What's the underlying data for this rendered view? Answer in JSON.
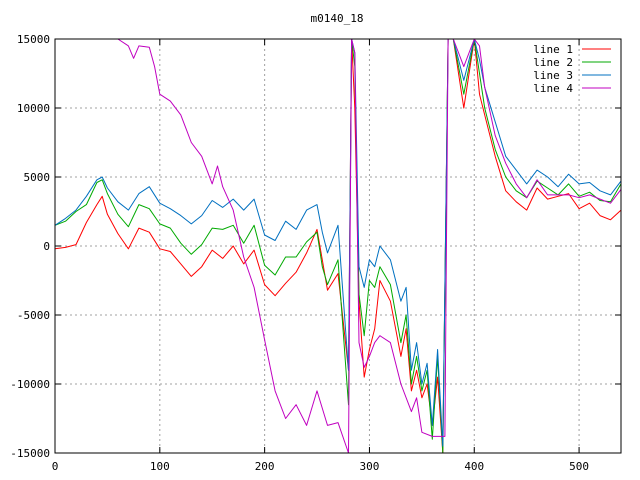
{
  "chart_data": {
    "type": "line",
    "title": "m0140_18",
    "xlabel": "",
    "ylabel": "",
    "xlim": [
      0,
      540
    ],
    "ylim": [
      -15000,
      15000
    ],
    "xticks": [
      0,
      100,
      200,
      300,
      400,
      500
    ],
    "yticks": [
      -15000,
      -10000,
      -5000,
      0,
      5000,
      10000,
      15000
    ],
    "grid": true,
    "legend_position": "top-right",
    "series": [
      {
        "name": "line 1",
        "color": "#ff0000",
        "points": [
          [
            0,
            -200
          ],
          [
            10,
            -100
          ],
          [
            20,
            100
          ],
          [
            30,
            1700
          ],
          [
            40,
            3000
          ],
          [
            45,
            3600
          ],
          [
            50,
            2300
          ],
          [
            60,
            900
          ],
          [
            70,
            -200
          ],
          [
            80,
            1300
          ],
          [
            90,
            1000
          ],
          [
            100,
            -200
          ],
          [
            110,
            -400
          ],
          [
            120,
            -1300
          ],
          [
            130,
            -2200
          ],
          [
            140,
            -1500
          ],
          [
            150,
            -300
          ],
          [
            160,
            -900
          ],
          [
            170,
            0
          ],
          [
            180,
            -1300
          ],
          [
            190,
            -300
          ],
          [
            200,
            -2800
          ],
          [
            210,
            -3600
          ],
          [
            220,
            -2700
          ],
          [
            230,
            -1900
          ],
          [
            240,
            -500
          ],
          [
            250,
            1200
          ],
          [
            255,
            -1000
          ],
          [
            260,
            -3200
          ],
          [
            270,
            -2000
          ],
          [
            280,
            -9000
          ],
          [
            283,
            15000
          ],
          [
            286,
            10000
          ],
          [
            290,
            -4000
          ],
          [
            295,
            -9500
          ],
          [
            300,
            -7500
          ],
          [
            305,
            -6000
          ],
          [
            310,
            -2500
          ],
          [
            320,
            -4000
          ],
          [
            330,
            -8000
          ],
          [
            335,
            -6000
          ],
          [
            340,
            -10500
          ],
          [
            345,
            -9000
          ],
          [
            350,
            -11000
          ],
          [
            355,
            -10000
          ],
          [
            360,
            -13000
          ],
          [
            365,
            -9500
          ],
          [
            370,
            -15000
          ],
          [
            375,
            15000
          ],
          [
            380,
            15000
          ],
          [
            390,
            10000
          ],
          [
            400,
            15000
          ],
          [
            405,
            11000
          ],
          [
            410,
            9500
          ],
          [
            420,
            6500
          ],
          [
            430,
            4000
          ],
          [
            440,
            3200
          ],
          [
            450,
            2600
          ],
          [
            460,
            4200
          ],
          [
            470,
            3400
          ],
          [
            480,
            3600
          ],
          [
            490,
            3800
          ],
          [
            500,
            2700
          ],
          [
            510,
            3100
          ],
          [
            520,
            2200
          ],
          [
            530,
            1900
          ],
          [
            540,
            2600
          ]
        ]
      },
      {
        "name": "line 2",
        "color": "#00aa00",
        "points": [
          [
            0,
            1500
          ],
          [
            10,
            1800
          ],
          [
            20,
            2500
          ],
          [
            30,
            3000
          ],
          [
            40,
            4600
          ],
          [
            45,
            4800
          ],
          [
            50,
            3800
          ],
          [
            60,
            2300
          ],
          [
            70,
            1400
          ],
          [
            80,
            3000
          ],
          [
            90,
            2700
          ],
          [
            100,
            1600
          ],
          [
            110,
            1300
          ],
          [
            120,
            200
          ],
          [
            130,
            -600
          ],
          [
            140,
            100
          ],
          [
            150,
            1300
          ],
          [
            160,
            1200
          ],
          [
            170,
            1500
          ],
          [
            180,
            200
          ],
          [
            190,
            1500
          ],
          [
            200,
            -1400
          ],
          [
            210,
            -2100
          ],
          [
            220,
            -800
          ],
          [
            230,
            -800
          ],
          [
            240,
            300
          ],
          [
            250,
            1000
          ],
          [
            255,
            -1500
          ],
          [
            260,
            -2800
          ],
          [
            270,
            -1000
          ],
          [
            280,
            -11500
          ],
          [
            283,
            15000
          ],
          [
            286,
            13000
          ],
          [
            290,
            -3500
          ],
          [
            295,
            -6500
          ],
          [
            300,
            -2500
          ],
          [
            305,
            -3000
          ],
          [
            310,
            -1500
          ],
          [
            320,
            -2800
          ],
          [
            330,
            -7000
          ],
          [
            335,
            -5000
          ],
          [
            340,
            -10000
          ],
          [
            345,
            -8000
          ],
          [
            350,
            -10500
          ],
          [
            355,
            -9000
          ],
          [
            360,
            -14000
          ],
          [
            365,
            -8000
          ],
          [
            370,
            -15000
          ],
          [
            375,
            15000
          ],
          [
            380,
            15000
          ],
          [
            390,
            11000
          ],
          [
            400,
            15000
          ],
          [
            405,
            12500
          ],
          [
            410,
            10000
          ],
          [
            420,
            7000
          ],
          [
            430,
            5000
          ],
          [
            440,
            4000
          ],
          [
            450,
            3500
          ],
          [
            460,
            4700
          ],
          [
            470,
            4200
          ],
          [
            480,
            3700
          ],
          [
            490,
            4500
          ],
          [
            500,
            3600
          ],
          [
            510,
            3900
          ],
          [
            520,
            3300
          ],
          [
            530,
            3200
          ],
          [
            540,
            4500
          ]
        ]
      },
      {
        "name": "line 3",
        "color": "#0070c0",
        "points": [
          [
            0,
            1500
          ],
          [
            10,
            2000
          ],
          [
            20,
            2600
          ],
          [
            30,
            3600
          ],
          [
            40,
            4800
          ],
          [
            45,
            5000
          ],
          [
            50,
            4200
          ],
          [
            60,
            3200
          ],
          [
            70,
            2600
          ],
          [
            80,
            3800
          ],
          [
            90,
            4300
          ],
          [
            100,
            3100
          ],
          [
            110,
            2700
          ],
          [
            120,
            2200
          ],
          [
            130,
            1600
          ],
          [
            140,
            2200
          ],
          [
            150,
            3300
          ],
          [
            160,
            2800
          ],
          [
            170,
            3400
          ],
          [
            180,
            2600
          ],
          [
            190,
            3400
          ],
          [
            200,
            800
          ],
          [
            210,
            400
          ],
          [
            220,
            1800
          ],
          [
            230,
            1200
          ],
          [
            240,
            2600
          ],
          [
            250,
            3000
          ],
          [
            255,
            1000
          ],
          [
            260,
            -500
          ],
          [
            270,
            1500
          ],
          [
            280,
            -9000
          ],
          [
            283,
            15000
          ],
          [
            286,
            14000
          ],
          [
            290,
            -1500
          ],
          [
            295,
            -3000
          ],
          [
            300,
            -1000
          ],
          [
            305,
            -1500
          ],
          [
            310,
            0
          ],
          [
            320,
            -1000
          ],
          [
            330,
            -4000
          ],
          [
            335,
            -3000
          ],
          [
            340,
            -9000
          ],
          [
            345,
            -7000
          ],
          [
            350,
            -10000
          ],
          [
            355,
            -8500
          ],
          [
            360,
            -13000
          ],
          [
            365,
            -7500
          ],
          [
            370,
            -14500
          ],
          [
            375,
            15000
          ],
          [
            380,
            15000
          ],
          [
            390,
            12000
          ],
          [
            400,
            15000
          ],
          [
            405,
            13500
          ],
          [
            410,
            11500
          ],
          [
            420,
            9000
          ],
          [
            430,
            6500
          ],
          [
            440,
            5500
          ],
          [
            450,
            4500
          ],
          [
            460,
            5500
          ],
          [
            470,
            5000
          ],
          [
            480,
            4300
          ],
          [
            490,
            5200
          ],
          [
            500,
            4500
          ],
          [
            510,
            4600
          ],
          [
            520,
            4000
          ],
          [
            530,
            3700
          ],
          [
            540,
            4700
          ]
        ]
      },
      {
        "name": "line 4",
        "color": "#c000c0",
        "points": [
          [
            60,
            15000
          ],
          [
            70,
            14500
          ],
          [
            75,
            13600
          ],
          [
            80,
            14500
          ],
          [
            90,
            14400
          ],
          [
            95,
            13000
          ],
          [
            100,
            11000
          ],
          [
            110,
            10500
          ],
          [
            120,
            9500
          ],
          [
            130,
            7500
          ],
          [
            140,
            6500
          ],
          [
            150,
            4500
          ],
          [
            155,
            5800
          ],
          [
            160,
            4300
          ],
          [
            170,
            2600
          ],
          [
            180,
            -800
          ],
          [
            190,
            -3000
          ],
          [
            200,
            -6800
          ],
          [
            210,
            -10500
          ],
          [
            220,
            -12500
          ],
          [
            230,
            -11500
          ],
          [
            240,
            -13000
          ],
          [
            250,
            -10500
          ],
          [
            260,
            -13000
          ],
          [
            270,
            -12800
          ],
          [
            280,
            -15000
          ],
          [
            283,
            15000
          ],
          [
            286,
            14000
          ],
          [
            290,
            -7000
          ],
          [
            295,
            -8800
          ],
          [
            300,
            -8000
          ],
          [
            305,
            -7000
          ],
          [
            310,
            -6500
          ],
          [
            320,
            -7000
          ],
          [
            330,
            -10000
          ],
          [
            340,
            -12000
          ],
          [
            345,
            -11000
          ],
          [
            350,
            -13500
          ],
          [
            360,
            -13800
          ],
          [
            370,
            -13800
          ],
          [
            372,
            -13800
          ],
          [
            375,
            15000
          ],
          [
            380,
            15000
          ],
          [
            390,
            13000
          ],
          [
            400,
            15000
          ],
          [
            405,
            14500
          ],
          [
            410,
            11500
          ],
          [
            420,
            8000
          ],
          [
            430,
            6000
          ],
          [
            440,
            4500
          ],
          [
            450,
            3500
          ],
          [
            460,
            4800
          ],
          [
            470,
            3700
          ],
          [
            480,
            3700
          ],
          [
            490,
            3700
          ],
          [
            500,
            3500
          ],
          [
            510,
            3700
          ],
          [
            520,
            3400
          ],
          [
            530,
            3100
          ],
          [
            540,
            4100
          ]
        ]
      }
    ]
  }
}
